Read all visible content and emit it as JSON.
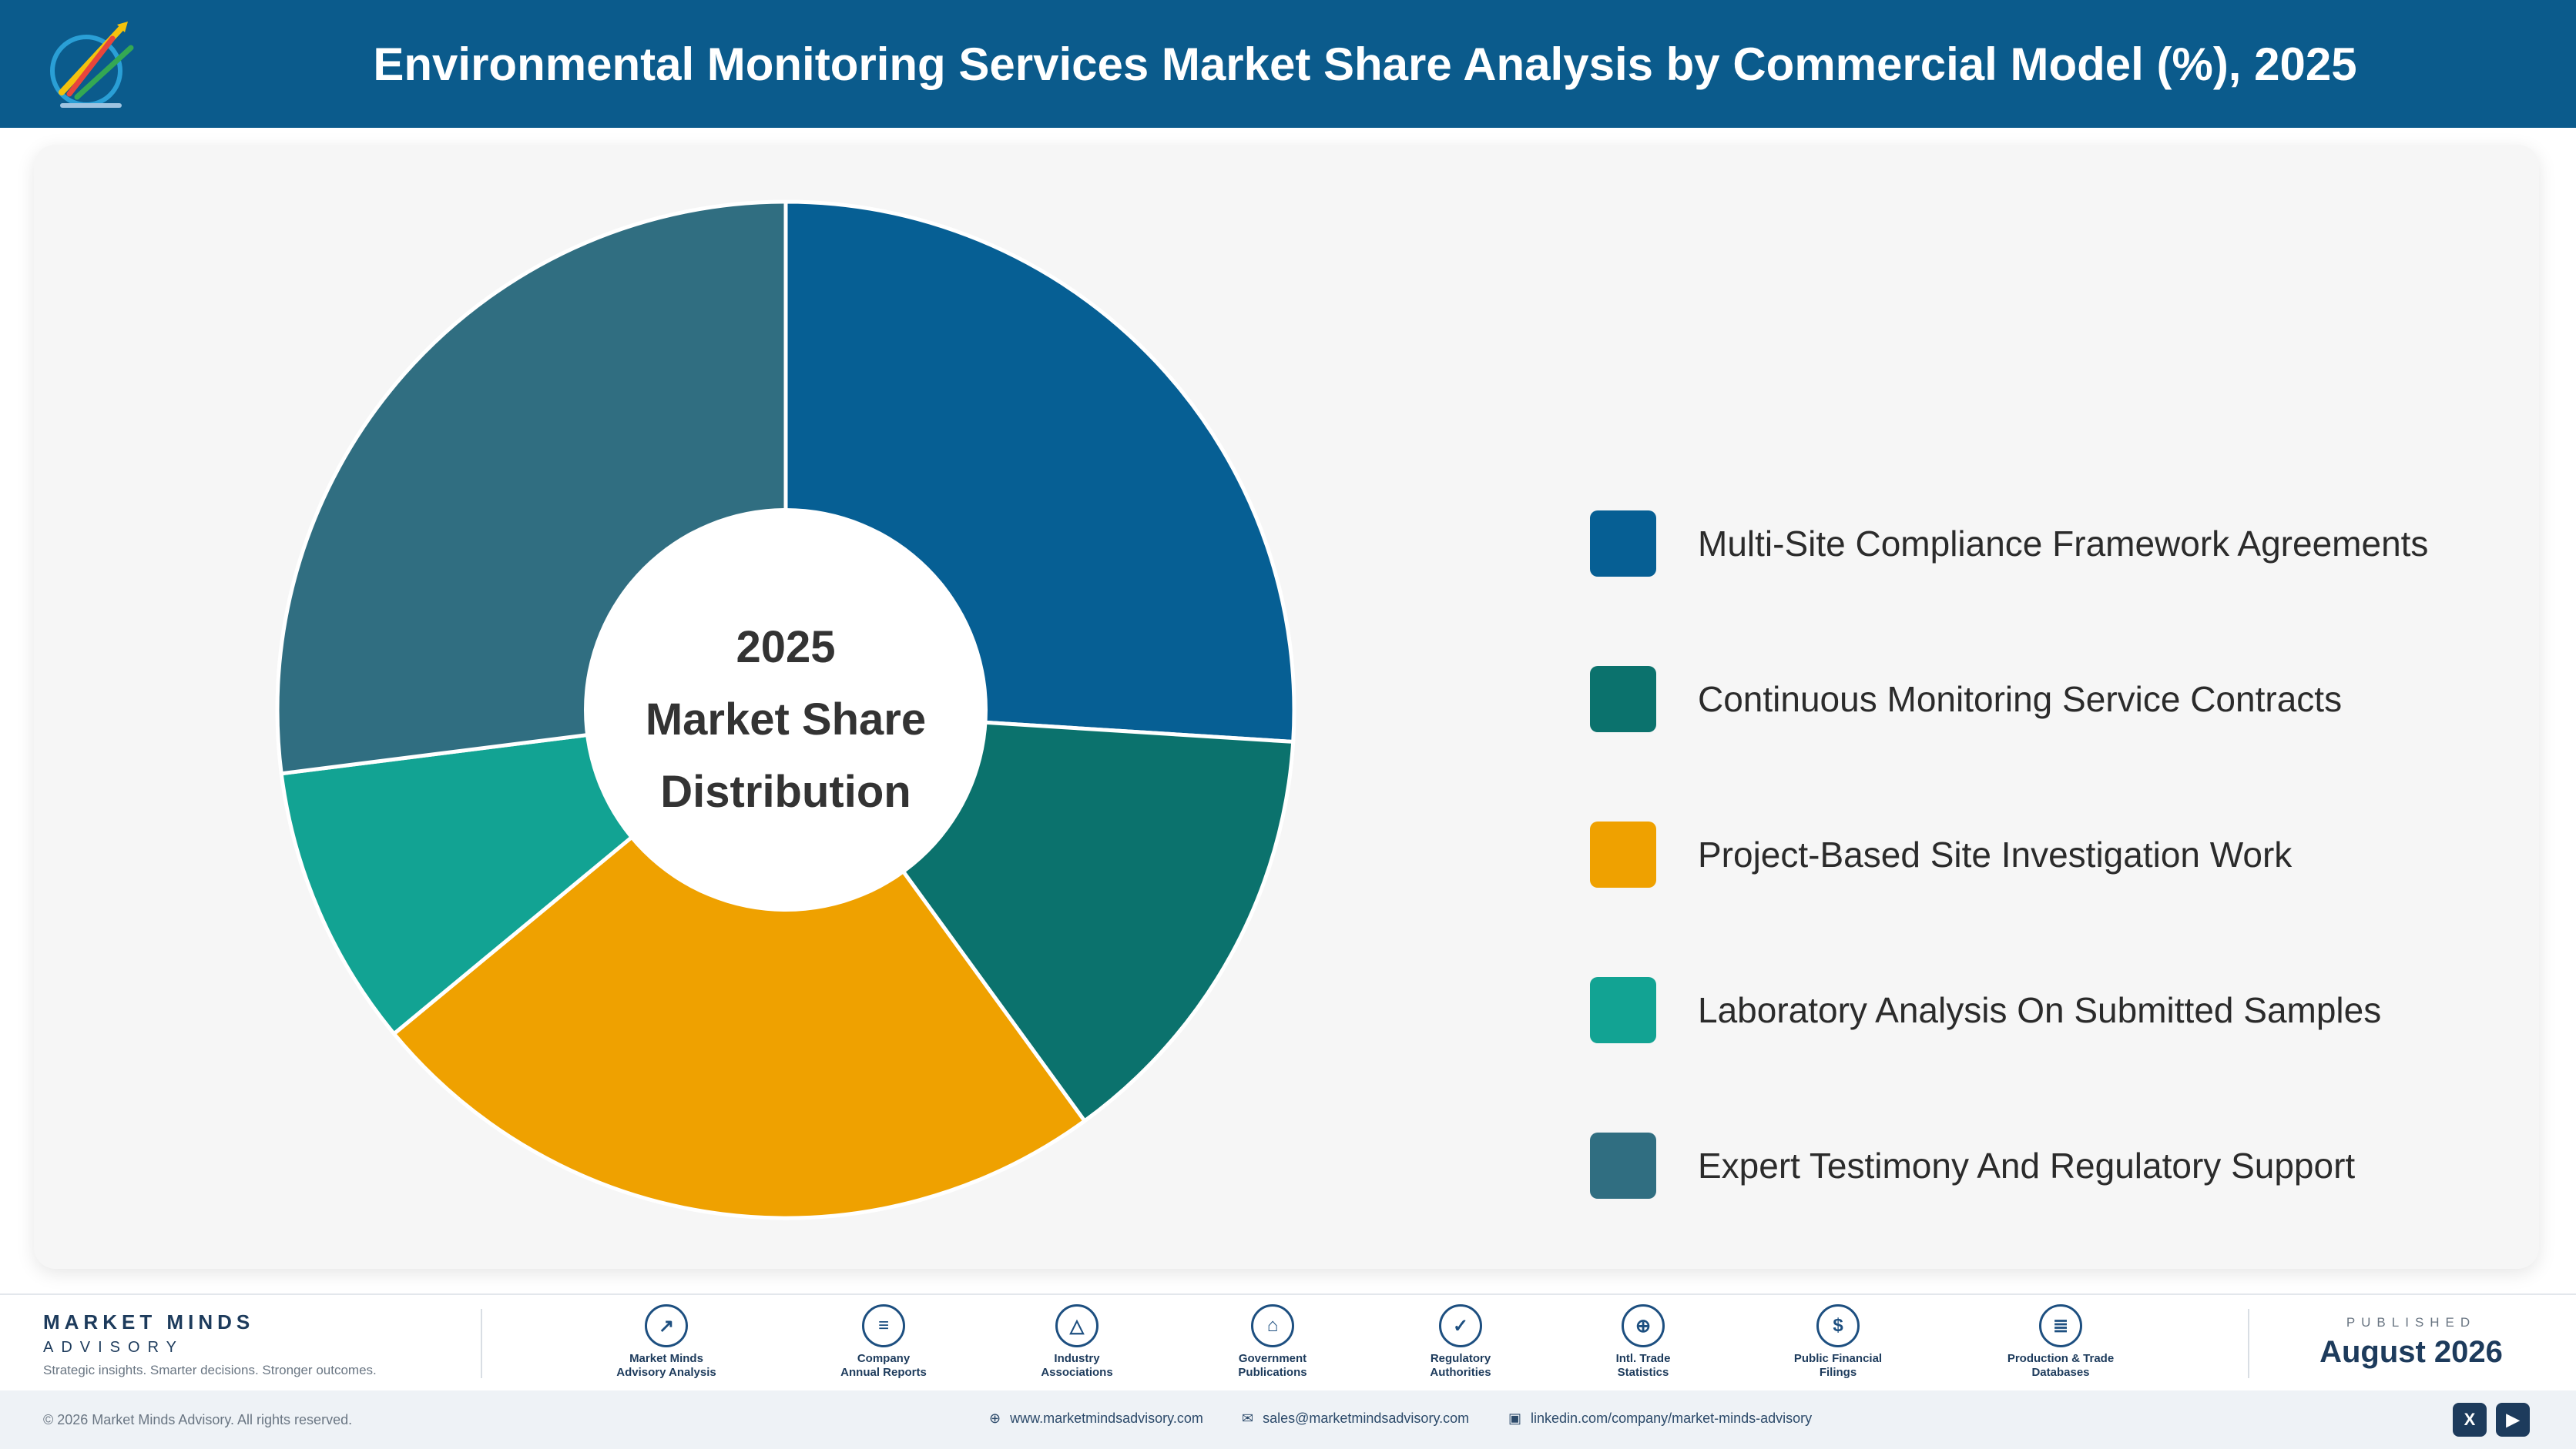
{
  "header": {
    "title": "Environmental Monitoring Services Market Share Analysis by Commercial Model (%), 2025"
  },
  "chart_data": {
    "type": "pie",
    "title": "Environmental Monitoring Services Market Share Analysis by Commercial Model (%), 2025",
    "center_text": [
      "2025",
      "Market Share",
      "Distribution"
    ],
    "legend_position": "right",
    "categories": [
      "Multi-Site Compliance Framework Agreements",
      "Continuous Monitoring Service Contracts",
      "Project-Based Site Investigation Work",
      "Laboratory Analysis On Submitted Samples",
      "Expert Testimony And Regulatory Support"
    ],
    "values": [
      26,
      14,
      24,
      9,
      27
    ],
    "colors": [
      "#065f94",
      "#0b726d",
      "#efa100",
      "#12a393",
      "#306e81"
    ]
  },
  "footer": {
    "brand_name": "MARKET MINDS",
    "brand_sub": "ADVISORY",
    "tagline": "Strategic insights. Smarter decisions. Stronger outcomes.",
    "sources": [
      {
        "line1": "Market Minds",
        "line2": "Advisory Analysis",
        "icon": "chart-line-icon",
        "glyph": "↗"
      },
      {
        "line1": "Company",
        "line2": "Annual Reports",
        "icon": "document-icon",
        "glyph": "≡"
      },
      {
        "line1": "Industry",
        "line2": "Associations",
        "icon": "network-icon",
        "glyph": "△"
      },
      {
        "line1": "Government",
        "line2": "Publications",
        "icon": "building-icon",
        "glyph": "⌂"
      },
      {
        "line1": "Regulatory",
        "line2": "Authorities",
        "icon": "shield-icon",
        "glyph": "✓"
      },
      {
        "line1": "Intl. Trade",
        "line2": "Statistics",
        "icon": "globe-icon",
        "glyph": "⊕"
      },
      {
        "line1": "Public Financial",
        "line2": "Filings",
        "icon": "dollar-icon",
        "glyph": "$"
      },
      {
        "line1": "Production & Trade",
        "line2": "Databases",
        "icon": "database-icon",
        "glyph": "≣"
      }
    ],
    "published_label": "PUBLISHED",
    "published_date": "August 2026",
    "copyright": "© 2026 Market Minds Advisory. All rights reserved.",
    "website": "www.marketmindsadvisory.com",
    "email": "sales@marketmindsadvisory.com",
    "linkedin": "linkedin.com/company/market-minds-advisory",
    "social_x": "X",
    "social_video": "▶"
  }
}
